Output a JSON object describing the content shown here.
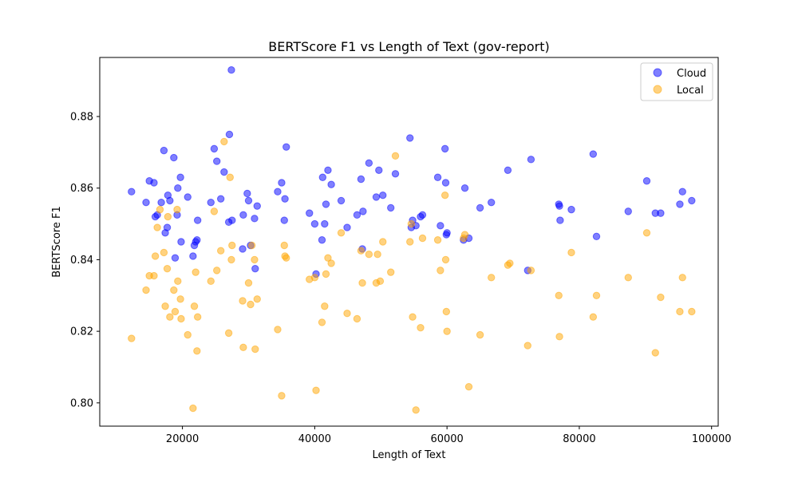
{
  "chart_data": {
    "type": "scatter",
    "title": "BERTScore F1 vs Length of Text (gov-report)",
    "xlabel": "Length of Text",
    "ylabel": "BERTScore F1",
    "xlim": [
      7500,
      101000
    ],
    "ylim": [
      0.7935,
      0.8965
    ],
    "x_ticks": [
      20000,
      40000,
      60000,
      80000,
      100000
    ],
    "y_ticks": [
      0.8,
      0.82,
      0.84,
      0.86,
      0.88
    ],
    "grid": false,
    "legend_position": "top-right",
    "series": [
      {
        "name": "Cloud",
        "color": "#0000ff",
        "points": [
          [
            12300,
            0.859
          ],
          [
            14500,
            0.856
          ],
          [
            15000,
            0.862
          ],
          [
            15700,
            0.8615
          ],
          [
            15900,
            0.852
          ],
          [
            16200,
            0.8525
          ],
          [
            16800,
            0.856
          ],
          [
            17200,
            0.8705
          ],
          [
            17400,
            0.8475
          ],
          [
            17700,
            0.849
          ],
          [
            17800,
            0.858
          ],
          [
            18100,
            0.8565
          ],
          [
            18700,
            0.8685
          ],
          [
            18900,
            0.8405
          ],
          [
            19200,
            0.8525
          ],
          [
            19300,
            0.86
          ],
          [
            19700,
            0.863
          ],
          [
            19800,
            0.845
          ],
          [
            20800,
            0.8575
          ],
          [
            21600,
            0.841
          ],
          [
            21800,
            0.844
          ],
          [
            22000,
            0.845
          ],
          [
            22200,
            0.8455
          ],
          [
            22300,
            0.851
          ],
          [
            24300,
            0.856
          ],
          [
            24800,
            0.871
          ],
          [
            25200,
            0.8675
          ],
          [
            25800,
            0.857
          ],
          [
            26300,
            0.8645
          ],
          [
            27000,
            0.8505
          ],
          [
            27100,
            0.875
          ],
          [
            27400,
            0.893
          ],
          [
            27500,
            0.851
          ],
          [
            29100,
            0.843
          ],
          [
            29200,
            0.8525
          ],
          [
            29800,
            0.8585
          ],
          [
            30000,
            0.8565
          ],
          [
            30300,
            0.844
          ],
          [
            30900,
            0.8515
          ],
          [
            31000,
            0.8375
          ],
          [
            31300,
            0.855
          ],
          [
            34400,
            0.859
          ],
          [
            35000,
            0.8615
          ],
          [
            35400,
            0.851
          ],
          [
            35500,
            0.857
          ],
          [
            35700,
            0.8715
          ],
          [
            39200,
            0.853
          ],
          [
            40000,
            0.85
          ],
          [
            40200,
            0.836
          ],
          [
            41100,
            0.8455
          ],
          [
            41200,
            0.863
          ],
          [
            41500,
            0.85
          ],
          [
            41700,
            0.8555
          ],
          [
            42000,
            0.865
          ],
          [
            42500,
            0.861
          ],
          [
            44000,
            0.8565
          ],
          [
            44900,
            0.849
          ],
          [
            46400,
            0.8525
          ],
          [
            47000,
            0.8625
          ],
          [
            47200,
            0.843
          ],
          [
            47300,
            0.8535
          ],
          [
            48200,
            0.867
          ],
          [
            49300,
            0.8575
          ],
          [
            49700,
            0.865
          ],
          [
            50300,
            0.858
          ],
          [
            51500,
            0.8545
          ],
          [
            52200,
            0.864
          ],
          [
            54400,
            0.874
          ],
          [
            54600,
            0.849
          ],
          [
            54800,
            0.851
          ],
          [
            55300,
            0.8495
          ],
          [
            56000,
            0.852
          ],
          [
            56300,
            0.8525
          ],
          [
            58600,
            0.863
          ],
          [
            59000,
            0.8495
          ],
          [
            59700,
            0.871
          ],
          [
            59800,
            0.8615
          ],
          [
            59900,
            0.847
          ],
          [
            60000,
            0.8475
          ],
          [
            62500,
            0.8455
          ],
          [
            62700,
            0.86
          ],
          [
            63300,
            0.846
          ],
          [
            65000,
            0.8545
          ],
          [
            66700,
            0.856
          ],
          [
            69200,
            0.865
          ],
          [
            72200,
            0.837
          ],
          [
            72700,
            0.868
          ],
          [
            76900,
            0.8555
          ],
          [
            77000,
            0.855
          ],
          [
            77100,
            0.851
          ],
          [
            78800,
            0.854
          ],
          [
            82100,
            0.8695
          ],
          [
            82600,
            0.8465
          ],
          [
            87400,
            0.8535
          ],
          [
            90200,
            0.862
          ],
          [
            91500,
            0.853
          ],
          [
            92300,
            0.853
          ],
          [
            95200,
            0.8555
          ],
          [
            95600,
            0.859
          ],
          [
            97000,
            0.8565
          ]
        ]
      },
      {
        "name": "Local",
        "color": "#ffa500",
        "points": [
          [
            12300,
            0.818
          ],
          [
            14500,
            0.8315
          ],
          [
            15000,
            0.8355
          ],
          [
            15700,
            0.8355
          ],
          [
            15900,
            0.841
          ],
          [
            16200,
            0.849
          ],
          [
            16600,
            0.854
          ],
          [
            17200,
            0.842
          ],
          [
            17400,
            0.827
          ],
          [
            17700,
            0.8375
          ],
          [
            17800,
            0.852
          ],
          [
            18100,
            0.824
          ],
          [
            18700,
            0.8315
          ],
          [
            18900,
            0.8255
          ],
          [
            19200,
            0.854
          ],
          [
            19300,
            0.834
          ],
          [
            19700,
            0.829
          ],
          [
            19800,
            0.8235
          ],
          [
            20800,
            0.819
          ],
          [
            21600,
            0.7985
          ],
          [
            21800,
            0.827
          ],
          [
            22000,
            0.8365
          ],
          [
            22200,
            0.8145
          ],
          [
            22300,
            0.824
          ],
          [
            24300,
            0.834
          ],
          [
            24800,
            0.8535
          ],
          [
            25200,
            0.837
          ],
          [
            25800,
            0.8425
          ],
          [
            26300,
            0.873
          ],
          [
            27000,
            0.8195
          ],
          [
            27200,
            0.863
          ],
          [
            27400,
            0.84
          ],
          [
            27500,
            0.844
          ],
          [
            29100,
            0.8285
          ],
          [
            29200,
            0.8155
          ],
          [
            30000,
            0.8335
          ],
          [
            30300,
            0.8275
          ],
          [
            30500,
            0.844
          ],
          [
            30900,
            0.84
          ],
          [
            31000,
            0.815
          ],
          [
            31300,
            0.829
          ],
          [
            34400,
            0.8205
          ],
          [
            35000,
            0.802
          ],
          [
            35400,
            0.844
          ],
          [
            35500,
            0.841
          ],
          [
            35700,
            0.8405
          ],
          [
            39200,
            0.8345
          ],
          [
            40000,
            0.835
          ],
          [
            40200,
            0.8035
          ],
          [
            41100,
            0.8225
          ],
          [
            41500,
            0.827
          ],
          [
            41700,
            0.836
          ],
          [
            42000,
            0.8405
          ],
          [
            42500,
            0.839
          ],
          [
            44000,
            0.8475
          ],
          [
            44900,
            0.825
          ],
          [
            46400,
            0.8235
          ],
          [
            47000,
            0.8425
          ],
          [
            47200,
            0.8335
          ],
          [
            48200,
            0.8415
          ],
          [
            49300,
            0.8335
          ],
          [
            49500,
            0.8415
          ],
          [
            49900,
            0.834
          ],
          [
            50300,
            0.845
          ],
          [
            51500,
            0.8365
          ],
          [
            52200,
            0.869
          ],
          [
            54400,
            0.845
          ],
          [
            54600,
            0.85
          ],
          [
            54800,
            0.824
          ],
          [
            55300,
            0.798
          ],
          [
            56000,
            0.821
          ],
          [
            56300,
            0.846
          ],
          [
            58600,
            0.8455
          ],
          [
            59000,
            0.837
          ],
          [
            59700,
            0.858
          ],
          [
            59800,
            0.84
          ],
          [
            59900,
            0.8255
          ],
          [
            60000,
            0.82
          ],
          [
            62500,
            0.846
          ],
          [
            62700,
            0.847
          ],
          [
            63300,
            0.8045
          ],
          [
            65000,
            0.819
          ],
          [
            66700,
            0.835
          ],
          [
            69200,
            0.8385
          ],
          [
            69500,
            0.839
          ],
          [
            72200,
            0.816
          ],
          [
            72700,
            0.837
          ],
          [
            76900,
            0.83
          ],
          [
            77000,
            0.8185
          ],
          [
            78800,
            0.842
          ],
          [
            82100,
            0.824
          ],
          [
            82600,
            0.83
          ],
          [
            87400,
            0.835
          ],
          [
            90200,
            0.8475
          ],
          [
            91500,
            0.814
          ],
          [
            92300,
            0.8295
          ],
          [
            95200,
            0.8255
          ],
          [
            95600,
            0.835
          ],
          [
            97000,
            0.8255
          ]
        ]
      }
    ]
  }
}
